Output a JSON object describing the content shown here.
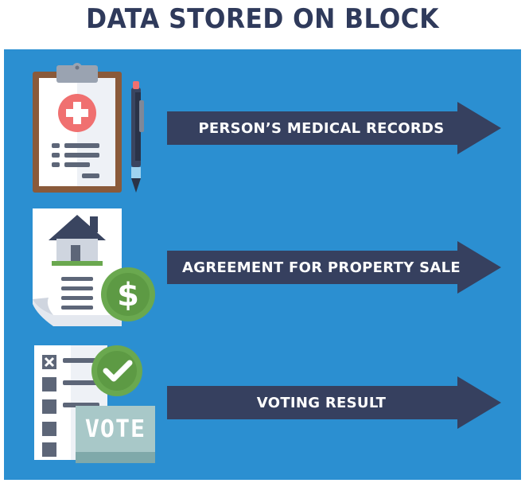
{
  "title": "DATA STORED ON BLOCK",
  "items": [
    {
      "label": "PERSON’S MEDICAL RECORDS",
      "icon": "medical-clipboard-icon"
    },
    {
      "label": "AGREEMENT FOR PROPERTY SALE",
      "icon": "property-document-icon"
    },
    {
      "label": "VOTING RESULT",
      "icon": "voting-checklist-icon"
    }
  ],
  "vote_text": "VOTE",
  "colors": {
    "title": "#2f3a5b",
    "panel": "#2b8fd1",
    "arrow": "#36405f",
    "accent_green": "#6aa84f",
    "accent_red": "#f07070"
  }
}
